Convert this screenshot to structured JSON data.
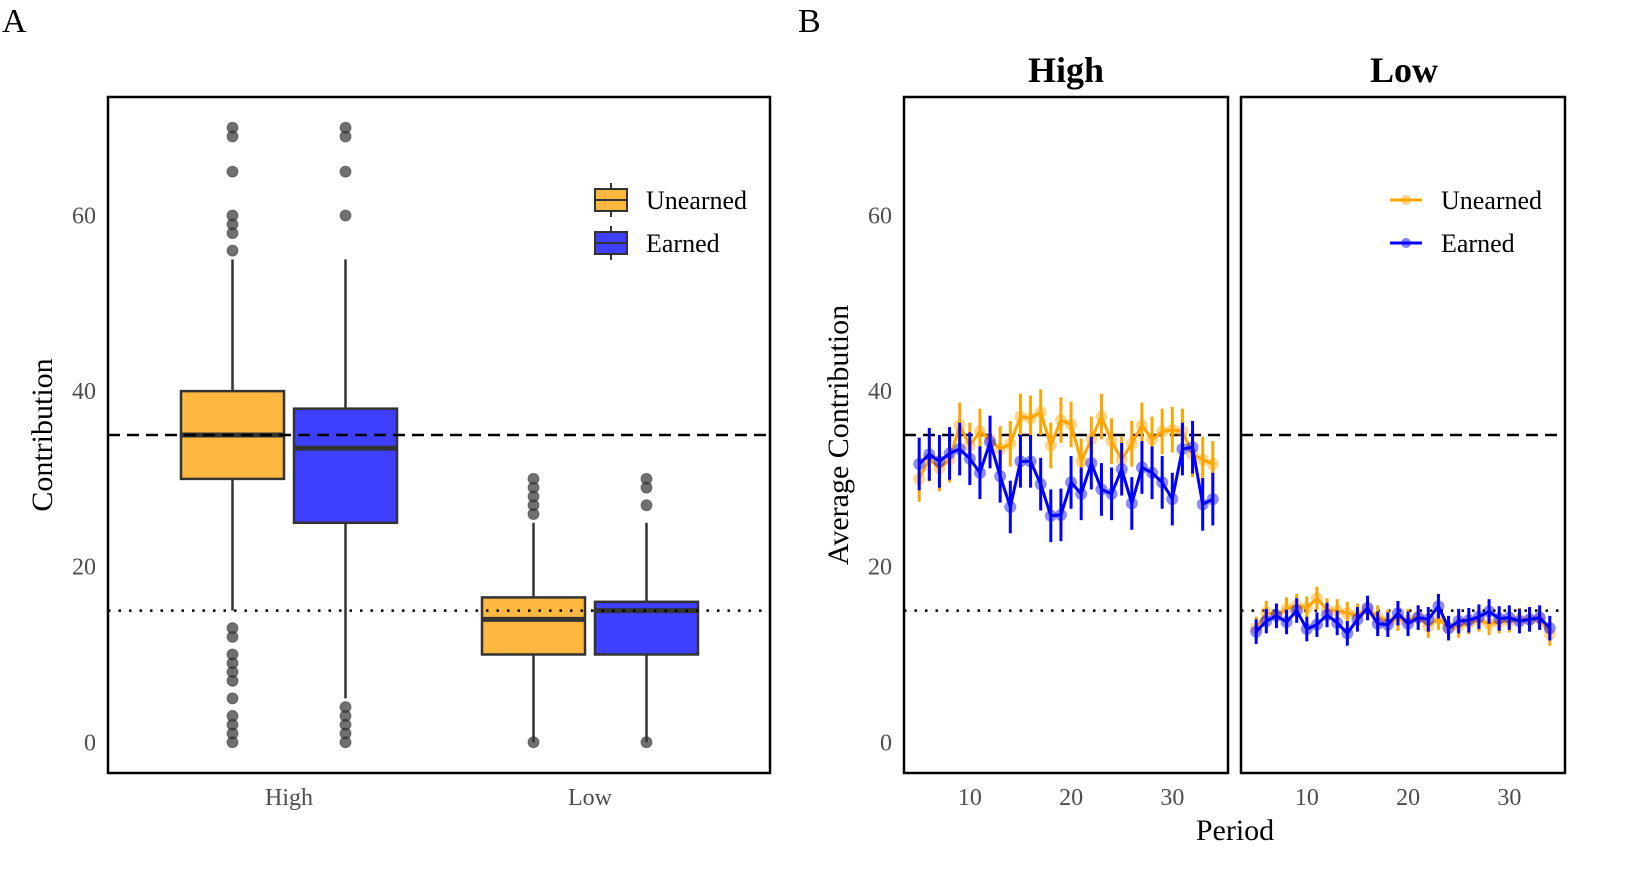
{
  "panel_labels": {
    "a": "A",
    "b": "B"
  },
  "chart_data": [
    {
      "type": "box",
      "panel": "A",
      "ylabel": "Contribution",
      "xlabel": "",
      "ylim": [
        -3.5,
        73.5
      ],
      "yticks": [
        0,
        20,
        40,
        60
      ],
      "categories": [
        "High",
        "Low"
      ],
      "grid": false,
      "legend_placement": "top-right",
      "reference_lines": [
        {
          "y": 35,
          "style": "dashed"
        },
        {
          "y": 15,
          "style": "dotted"
        }
      ],
      "series": [
        {
          "name": "Unearned",
          "color": "#FFB83F",
          "boxes": [
            {
              "category": "High",
              "q1": 30,
              "median": 35,
              "q3": 40,
              "whisker_low": 15,
              "whisker_high": 55,
              "outliers": [
                0,
                1,
                2,
                3,
                5,
                7,
                8,
                9,
                10,
                12,
                13,
                56,
                58,
                59,
                60,
                65,
                69,
                70
              ]
            },
            {
              "category": "Low",
              "q1": 10,
              "median": 14,
              "q3": 16.5,
              "whisker_low": 0,
              "whisker_high": 25,
              "outliers": [
                26,
                27,
                28,
                29,
                30
              ]
            }
          ]
        },
        {
          "name": "Earned",
          "color": "#3F3FFF",
          "boxes": [
            {
              "category": "High",
              "q1": 25,
              "median": 33.5,
              "q3": 38,
              "whisker_low": 5,
              "whisker_high": 55,
              "outliers": [
                0,
                1,
                2,
                3,
                4,
                60,
                65,
                69,
                70
              ]
            },
            {
              "category": "Low",
              "q1": 10,
              "median": 15,
              "q3": 16,
              "whisker_low": 0,
              "whisker_high": 25,
              "outliers": [
                27,
                29,
                30
              ]
            }
          ]
        }
      ]
    },
    {
      "type": "line",
      "panel": "B",
      "ylabel": "Average Contribution",
      "xlabel": "Period",
      "ylim": [
        -3.5,
        73.5
      ],
      "xlim": [
        3.5,
        35.5
      ],
      "yticks": [
        0,
        20,
        40,
        60
      ],
      "xticks": [
        10,
        20,
        30
      ],
      "grid": false,
      "legend_placement": "top-right",
      "reference_lines": [
        {
          "y": 35,
          "style": "dashed"
        },
        {
          "y": 15,
          "style": "dotted"
        }
      ],
      "x": [
        5,
        6,
        7,
        8,
        9,
        10,
        11,
        12,
        13,
        14,
        15,
        16,
        17,
        18,
        19,
        20,
        21,
        22,
        23,
        24,
        25,
        26,
        27,
        28,
        29,
        30,
        31,
        32,
        33,
        34
      ],
      "facets": [
        {
          "title": "High",
          "series": [
            {
              "name": "Unearned",
              "color": "#FFA500",
              "error": 2.6,
              "values": [
                30.0,
                32.3,
                31.2,
                32.2,
                36.1,
                33.8,
                35.4,
                34.5,
                33.4,
                34.0,
                37.1,
                36.9,
                37.6,
                33.8,
                36.7,
                36.2,
                32.0,
                34.5,
                37.1,
                34.3,
                32.2,
                34.0,
                36.1,
                34.5,
                35.4,
                35.6,
                35.4,
                32.8,
                32.2,
                31.7
              ]
            },
            {
              "name": "Earned",
              "color": "#0000FF",
              "error": 3.0,
              "values": [
                31.7,
                32.8,
                32.0,
                32.9,
                33.4,
                32.3,
                30.7,
                34.2,
                30.3,
                26.8,
                32.0,
                32.0,
                29.4,
                25.8,
                25.9,
                29.6,
                28.3,
                31.8,
                28.8,
                28.3,
                31.1,
                27.2,
                31.3,
                30.7,
                29.6,
                27.7,
                33.4,
                33.6,
                27.1,
                27.7
              ]
            }
          ]
        },
        {
          "title": "Low",
          "series": [
            {
              "name": "Unearned",
              "color": "#FFA500",
              "error": 1.3,
              "values": [
                13.0,
                14.8,
                14.5,
                15.2,
                15.6,
                15.3,
                16.4,
                15.1,
                15.0,
                14.7,
                14.5,
                15.2,
                14.3,
                13.8,
                14.0,
                13.9,
                14.3,
                13.2,
                14.1,
                13.0,
                13.2,
                13.6,
                13.9,
                13.5,
                13.7,
                13.8,
                14.0,
                13.9,
                14.1,
                12.3
              ]
            },
            {
              "name": "Earned",
              "color": "#0000FF",
              "error": 1.4,
              "values": [
                12.6,
                13.8,
                14.4,
                13.7,
                15.0,
                12.9,
                13.4,
                14.5,
                13.6,
                12.4,
                14.0,
                15.3,
                13.5,
                13.4,
                14.7,
                13.5,
                14.2,
                14.0,
                15.5,
                13.0,
                13.8,
                13.9,
                14.3,
                14.9,
                14.1,
                14.2,
                13.8,
                14.0,
                14.2,
                13.0
              ]
            }
          ]
        }
      ]
    }
  ]
}
